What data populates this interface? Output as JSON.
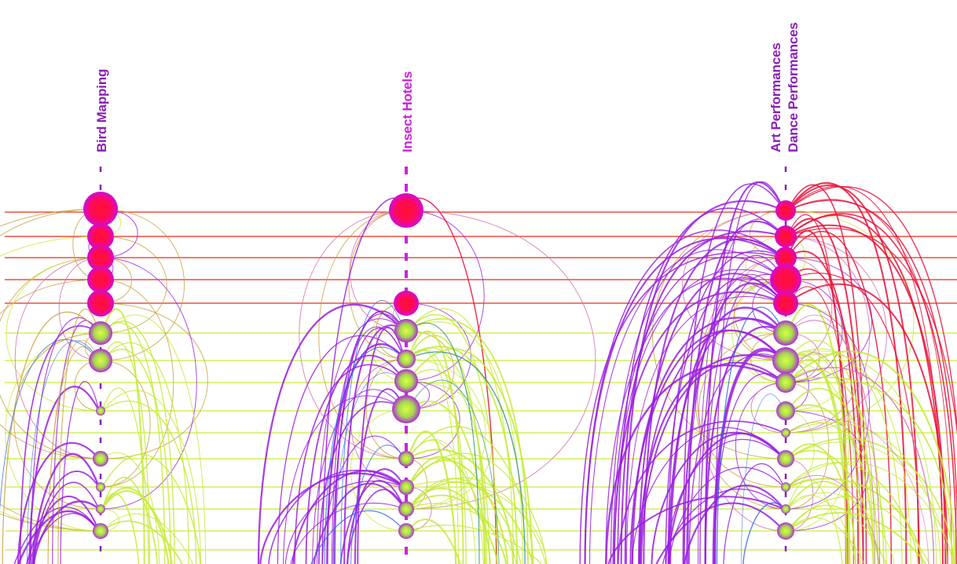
{
  "columns": [
    {
      "id": "bird-mapping",
      "labels": [
        "Bird Mapping"
      ],
      "label_color": "#8a1fb8",
      "spine_color": "#8a1fb8"
    },
    {
      "id": "insect-hotels",
      "labels": [
        "Insect Hotels"
      ],
      "label_color": "#cc22dd",
      "spine_color": "#cc22dd"
    },
    {
      "id": "art-dance",
      "labels": [
        "Art Performances",
        "Dance Performances"
      ],
      "label_color": "#8a1fb8",
      "spine_color": "#8a1fb8"
    }
  ],
  "colors": {
    "red_line": "#ee2a1c",
    "green_line": "#c8ee3a",
    "node_red_core": "#ff0a3c",
    "node_red_rim": "#d00ad8",
    "node_green_core": "#c8f03c",
    "node_green_rim": "#b02ad8",
    "arc_purple": "#9a1ee0",
    "arc_green": "#c6ea3a",
    "arc_red": "#e8123c",
    "arc_blue": "#3a6ae8",
    "arc_tan": "#c8a040"
  }
}
